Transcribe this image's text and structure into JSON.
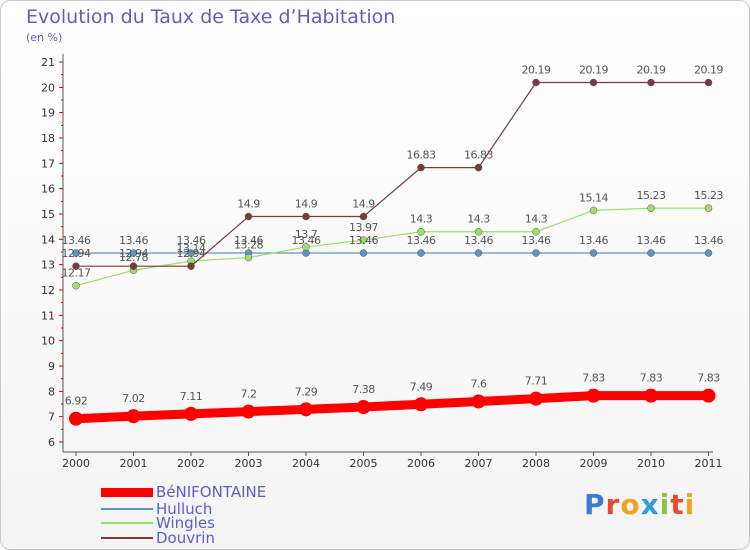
{
  "header": {
    "title": "Evolution du Taux de Taxe d’Habitation",
    "unit": "(en %)"
  },
  "logo_text": "Proxiti",
  "colors": {
    "benifontaine": "#ff0000",
    "hulluch": "#5b95c7",
    "wingles": "#99e065",
    "douvrin": "#7a3b3b",
    "text": "#5a5fc8",
    "axis": "#555555",
    "ticks": "#d00000"
  },
  "chart_data": {
    "type": "line",
    "x": [
      "2000",
      "2001",
      "2002",
      "2003",
      "2004",
      "2005",
      "2006",
      "2007",
      "2008",
      "2009",
      "2010",
      "2011"
    ],
    "ylim": [
      6,
      21
    ],
    "yticks": [
      6,
      7,
      8,
      9,
      10,
      11,
      12,
      13,
      14,
      15,
      16,
      17,
      18,
      19,
      20,
      21
    ],
    "grid": false,
    "legend_position": "bottom-left",
    "series": [
      {
        "name": "BéNIFONTAINE",
        "values": [
          6.92,
          7.02,
          7.11,
          7.2,
          7.29,
          7.38,
          7.49,
          7.6,
          7.71,
          7.83,
          7.83,
          7.83
        ],
        "labels": [
          "6.92",
          "7.02",
          "7.11",
          "7.2",
          "7.29",
          "7.38",
          "7.49",
          "7.6",
          "7.71",
          "7.83",
          "7.83",
          "7.83"
        ],
        "color": "#ff0000"
      },
      {
        "name": "Hulluch",
        "values": [
          13.46,
          13.46,
          13.46,
          13.46,
          13.46,
          13.46,
          13.46,
          13.46,
          13.46,
          13.46,
          13.46,
          13.46
        ],
        "labels": [
          "13.46",
          "13.46",
          "13.46",
          "13.46",
          "13.46",
          "13.46",
          "13.46",
          "13.46",
          "13.46",
          "13.46",
          "13.46",
          "13.46"
        ],
        "color": "#5b95c7"
      },
      {
        "name": "Wingles",
        "values": [
          12.17,
          12.78,
          13.14,
          13.28,
          13.7,
          13.97,
          14.3,
          14.3,
          14.3,
          15.14,
          15.23,
          15.23
        ],
        "labels": [
          "12.17",
          "12.78",
          "13.14",
          "13.28",
          "13.7",
          "13.97",
          "14.3",
          "14.3",
          "14.3",
          "15.14",
          "15.23",
          "15.23"
        ],
        "color": "#99e065"
      },
      {
        "name": "Douvrin",
        "values": [
          12.94,
          12.94,
          12.94,
          14.9,
          14.9,
          14.9,
          16.83,
          16.83,
          20.19,
          20.19,
          20.19,
          20.19
        ],
        "labels": [
          "12.94",
          "12.94",
          "12.94",
          "14.9",
          "14.9",
          "14.9",
          "16.83",
          "16.83",
          "20.19",
          "20.19",
          "20.19",
          "20.19"
        ],
        "color": "#7a3b3b"
      }
    ]
  }
}
